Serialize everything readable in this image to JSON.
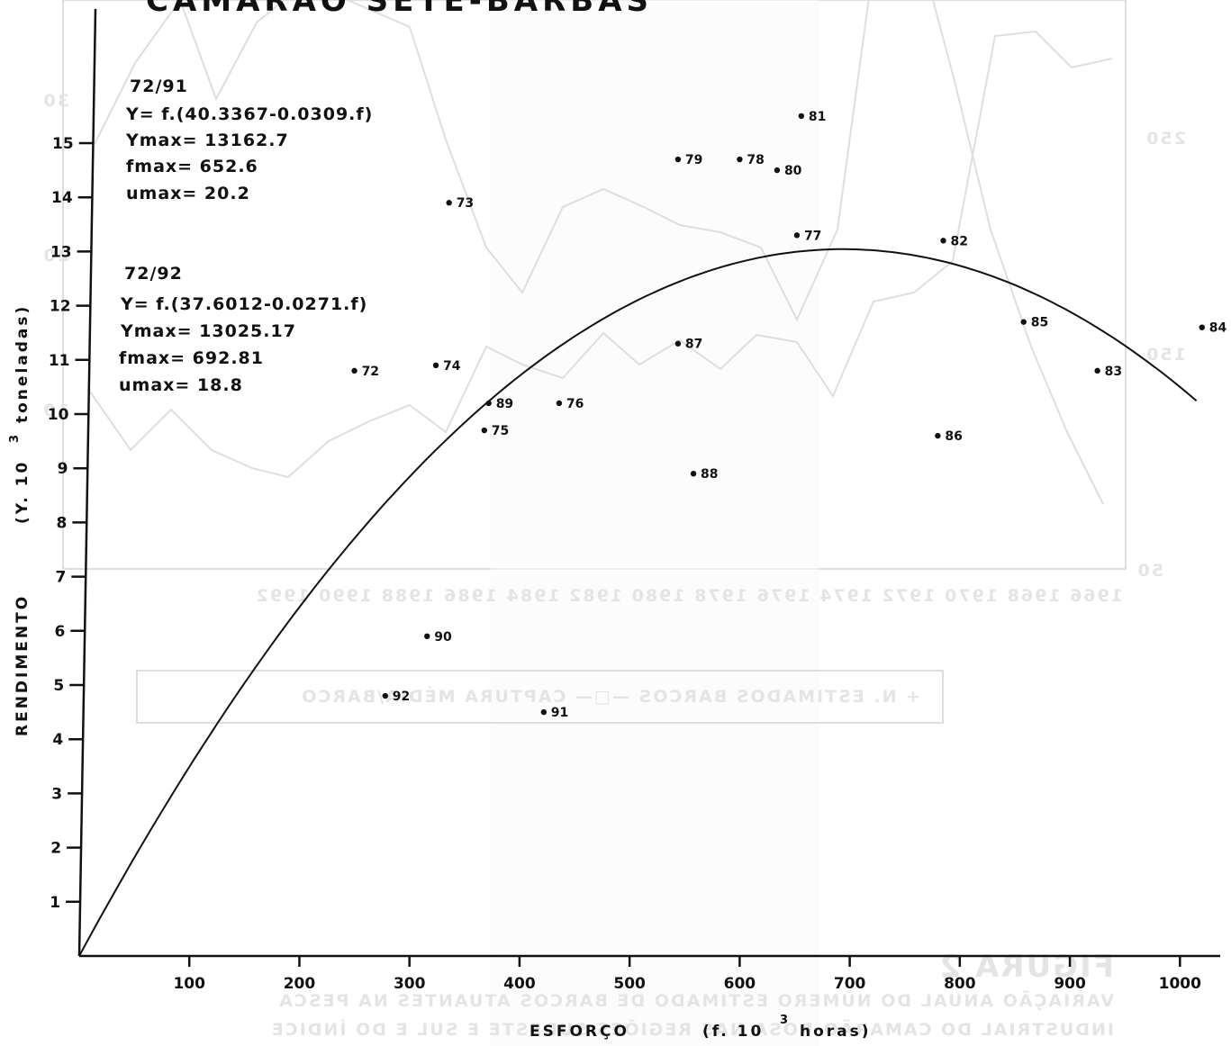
{
  "chart_data": {
    "type": "scatter",
    "title": "CAMARÃO SETE-BARBAS",
    "xlabel_main": "ESFORÇO",
    "xlabel_unit": "(f. 10",
    "xlabel_exp": "3",
    "xlabel_tail": "horas)",
    "ylabel_main": "RENDIMENTO",
    "ylabel_unit": "(Y. 10",
    "ylabel_exp": "3",
    "ylabel_tail": "toneladas)",
    "xlim": [
      0,
      1040
    ],
    "ylim": [
      0,
      17.5
    ],
    "xticks": [
      "100",
      "200",
      "300",
      "400",
      "500",
      "600",
      "700",
      "800",
      "900",
      "1000"
    ],
    "yticks": [
      "1",
      "2",
      "3",
      "4",
      "5",
      "6",
      "7",
      "8",
      "9",
      "10",
      "11",
      "12",
      "13",
      "14",
      "15"
    ],
    "models": [
      {
        "period": "72/91",
        "equation": "Y= f.(40.3367-0.0309.f)",
        "ymax": "Ymax= 13162.7",
        "fmax": "fmax= 652.6",
        "umax": "umax= 20.2"
      },
      {
        "period": "72/92",
        "equation": "Y= f.(37.6012-0.0271.f)",
        "ymax": "Ymax= 13025.17",
        "fmax": "fmax= 692.81",
        "umax": "umax= 18.8"
      }
    ],
    "curve": {
      "a": 37.6012,
      "b": 0.0271,
      "f_range": [
        0,
        1015
      ]
    },
    "points": [
      {
        "label": "72",
        "x": 250,
        "y": 10.8
      },
      {
        "label": "73",
        "x": 336,
        "y": 13.9
      },
      {
        "label": "74",
        "x": 324,
        "y": 10.9
      },
      {
        "label": "75",
        "x": 368,
        "y": 9.7
      },
      {
        "label": "76",
        "x": 436,
        "y": 10.2
      },
      {
        "label": "77",
        "x": 652,
        "y": 13.3
      },
      {
        "label": "78",
        "x": 600,
        "y": 14.7
      },
      {
        "label": "79",
        "x": 544,
        "y": 14.7
      },
      {
        "label": "80",
        "x": 634,
        "y": 14.5
      },
      {
        "label": "81",
        "x": 656,
        "y": 15.5
      },
      {
        "label": "82",
        "x": 785,
        "y": 13.2
      },
      {
        "label": "83",
        "x": 925,
        "y": 10.8
      },
      {
        "label": "84",
        "x": 1020,
        "y": 11.6
      },
      {
        "label": "85",
        "x": 858,
        "y": 11.7
      },
      {
        "label": "86",
        "x": 780,
        "y": 9.6
      },
      {
        "label": "87",
        "x": 544,
        "y": 11.3
      },
      {
        "label": "88",
        "x": 558,
        "y": 8.9
      },
      {
        "label": "89",
        "x": 372,
        "y": 10.2
      },
      {
        "label": "90",
        "x": 316,
        "y": 5.9
      },
      {
        "label": "91",
        "x": 422,
        "y": 4.5
      },
      {
        "label": "92",
        "x": 278,
        "y": 4.8
      }
    ],
    "grid": false
  },
  "showthrough": {
    "legend": "+ N. ESTIMADOS BARCOS  —□— CAPTURA MÉDIA/BARCO",
    "years": "1966 1968 1970 1972 1974 1976 1978 1980 1982 1984 1986 1988 1990 1992",
    "caption_title": "FIGURA 2",
    "caption_line1": "VARIAÇÃO ANUAL DO NÚMERO ESTIMADO DE BARCOS ATUANTES NA PESCA",
    "caption_line2": "INDUSTRIAL DO CAMARÃO-ROSA NAS REGIÕES SUDESTE E SUL E DO ÍNDICE",
    "right_ticks": [
      "250",
      "150",
      "50"
    ],
    "left_ticks": [
      "30",
      "20",
      "10"
    ]
  }
}
